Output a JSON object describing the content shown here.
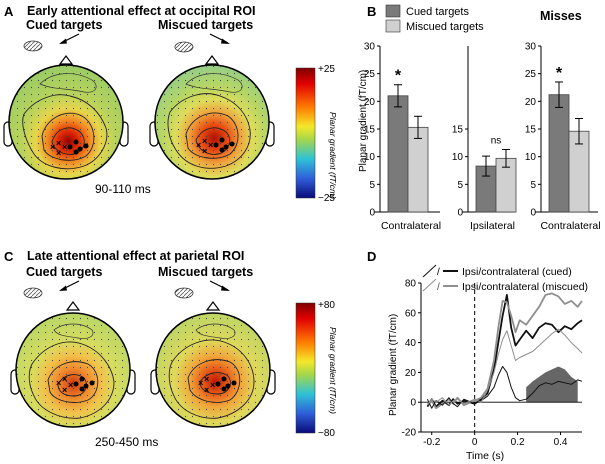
{
  "panels": {
    "A": {
      "letter": "A",
      "title": "Early attentional effect at occipital ROI",
      "cued_label": "Cued targets",
      "miscued_label": "Miscued targets",
      "time_window": "90-110 ms",
      "colorbar_max": "+25",
      "colorbar_min": "−25",
      "colorbar_label": "Planar gradient (fT/cm)"
    },
    "B": {
      "letter": "B",
      "legend": [
        "Cued targets",
        "Miscued targets"
      ],
      "misses_title": "Misses",
      "colors": {
        "cued": "#7a7a7a",
        "miscued": "#d0d0d0"
      }
    },
    "C": {
      "letter": "C",
      "title": "Late attentional effect at parietal ROI",
      "cued_label": "Cued targets",
      "miscued_label": "Miscued targets",
      "time_window": "250-450 ms",
      "colorbar_max": "+80",
      "colorbar_min": "−80",
      "colorbar_label": "Planar gradient (fT/cm)"
    },
    "D": {
      "letter": "D",
      "legend": [
        "Ipsi/contralateral (cued)",
        "Ipsi/contralateral (miscued)"
      ]
    }
  },
  "chart_data": [
    {
      "id": "bar-chart-B",
      "type": "bar",
      "ylabel": "Planar gradient (fT/cm)",
      "ylim": [
        0,
        30
      ],
      "yticks": [
        "0",
        "5",
        "10",
        "15",
        "20",
        "25",
        "30"
      ],
      "groups": [
        {
          "label": "Contralateral",
          "cued": 21,
          "miscued": 15.3,
          "cued_err": 2,
          "miscued_err": 2,
          "sig": "*"
        },
        {
          "label": "Ipsilateral",
          "cued": 8.3,
          "miscued": 9.7,
          "cued_err": 1.8,
          "miscued_err": 1.6,
          "sig": "ns"
        },
        {
          "label": "Contralateral",
          "cued": 21.2,
          "miscued": 14.6,
          "cued_err": 2.3,
          "miscued_err": 2.3,
          "sig": "*"
        }
      ]
    },
    {
      "id": "line-chart-D",
      "type": "line",
      "xlabel": "Time (s)",
      "ylabel": "Planar gradient (fT/cm)",
      "xlim": [
        -0.25,
        0.5
      ],
      "ylim": [
        -20,
        80
      ],
      "xticks": [
        "-0.2",
        "0",
        "0.2",
        "0.4"
      ],
      "yticks": [
        "-20",
        "0",
        "20",
        "40",
        "60",
        "80"
      ],
      "series": [
        {
          "name": "contra-cued",
          "color": "#111111",
          "width": 1.8,
          "x": [
            -0.22,
            -0.2,
            -0.18,
            -0.15,
            -0.12,
            -0.1,
            -0.08,
            -0.05,
            0,
            0.03,
            0.06,
            0.09,
            0.11,
            0.13,
            0.15,
            0.17,
            0.19,
            0.21,
            0.24,
            0.27,
            0.3,
            0.33,
            0.36,
            0.39,
            0.42,
            0.45,
            0.48,
            0.5
          ],
          "y": [
            -3,
            2,
            -3,
            1,
            -2,
            2,
            -1,
            1,
            -1,
            2,
            6,
            22,
            40,
            58,
            72,
            50,
            38,
            42,
            48,
            43,
            50,
            53,
            52,
            47,
            51,
            49,
            53,
            55
          ]
        },
        {
          "name": "contra-miscued",
          "color": "#8f8f8f",
          "width": 1.8,
          "x": [
            -0.22,
            -0.2,
            -0.18,
            -0.15,
            -0.12,
            -0.1,
            -0.08,
            -0.05,
            0,
            0.03,
            0.06,
            0.09,
            0.11,
            0.13,
            0.15,
            0.17,
            0.19,
            0.21,
            0.24,
            0.27,
            0.3,
            0.33,
            0.36,
            0.39,
            0.42,
            0.45,
            0.48,
            0.5
          ],
          "y": [
            -1,
            1,
            -4,
            -1,
            2,
            -1,
            3,
            -2,
            1,
            3,
            9,
            28,
            50,
            68,
            67,
            58,
            47,
            55,
            52,
            58,
            64,
            72,
            73,
            71,
            66,
            68,
            64,
            68
          ]
        },
        {
          "name": "ipsi-cued",
          "color": "#111111",
          "width": 1.0,
          "x": [
            -0.22,
            -0.2,
            -0.18,
            -0.15,
            -0.12,
            -0.1,
            -0.08,
            -0.05,
            0,
            0.03,
            0.06,
            0.09,
            0.11,
            0.13,
            0.15,
            0.17,
            0.19,
            0.21,
            0.24,
            0.27,
            0.3,
            0.33,
            0.36,
            0.39,
            0.42,
            0.45,
            0.48,
            0.5
          ],
          "y": [
            2,
            -4,
            1,
            -2,
            3,
            -1,
            -3,
            2,
            -1,
            1,
            4,
            10,
            18,
            24,
            20,
            10,
            3,
            1,
            2,
            6,
            11,
            13,
            12,
            14,
            13,
            12,
            15,
            14
          ]
        },
        {
          "name": "ipsi-miscued",
          "color": "#8f8f8f",
          "width": 1.0,
          "x": [
            -0.22,
            -0.2,
            -0.18,
            -0.15,
            -0.12,
            -0.1,
            -0.08,
            -0.05,
            0,
            0.03,
            0.06,
            0.09,
            0.11,
            0.13,
            0.15,
            0.17,
            0.19,
            0.21,
            0.24,
            0.27,
            0.3,
            0.33,
            0.36,
            0.39,
            0.42,
            0.45,
            0.48,
            0.5
          ],
          "y": [
            -2,
            2,
            0,
            3,
            -2,
            1,
            2,
            -1,
            2,
            0,
            8,
            20,
            32,
            42,
            48,
            38,
            28,
            30,
            32,
            34,
            38,
            42,
            46,
            49,
            45,
            40,
            36,
            33
          ]
        }
      ],
      "shaded_region": {
        "x": [
          0.24,
          0.27,
          0.3,
          0.33,
          0.36,
          0.39,
          0.42,
          0.45,
          0.48
        ],
        "y": [
          10,
          14,
          17,
          20,
          22,
          24,
          22,
          17,
          14
        ]
      }
    }
  ]
}
